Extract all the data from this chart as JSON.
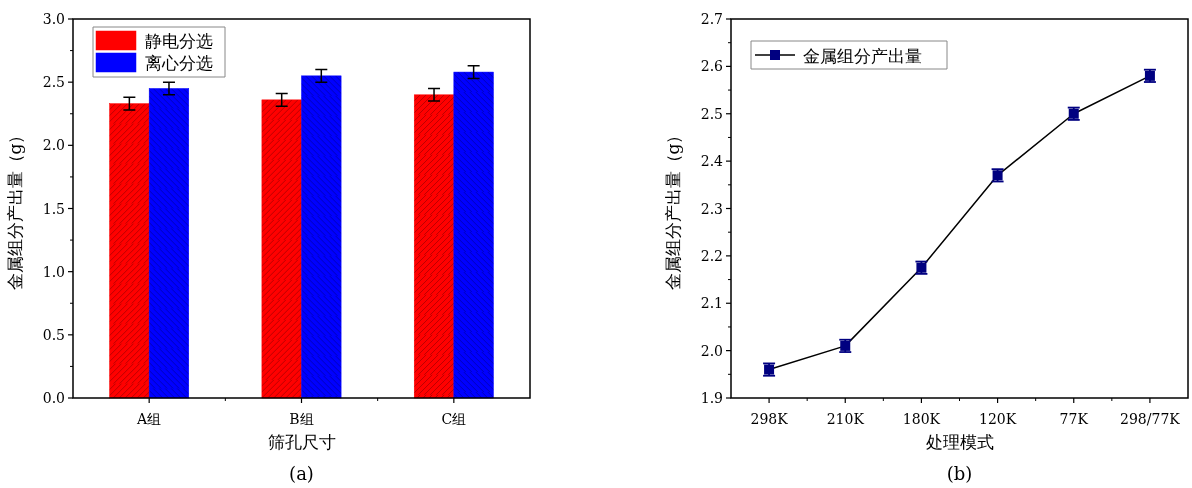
{
  "chart_data": [
    {
      "type": "bar",
      "categories": [
        "A组",
        "B组",
        "C组"
      ],
      "xlabel": "筛孔尺寸",
      "ylabel": "金属组分产出量（g）",
      "annotations": [
        "(a)"
      ],
      "series": [
        {
          "name": "静电分选",
          "color": "#ff0000",
          "values": [
            2.33,
            2.36,
            2.4
          ],
          "errors": [
            0.05,
            0.05,
            0.05
          ]
        },
        {
          "name": "离心分选",
          "color": "#0000ff",
          "values": [
            2.45,
            2.55,
            2.58
          ],
          "errors": [
            0.05,
            0.05,
            0.05
          ]
        }
      ],
      "ylim": [
        0,
        3
      ],
      "yticks": [
        {
          "value": 0,
          "label": "0.0"
        },
        0.5,
        {
          "value": 1,
          "label": "1.0"
        },
        1.5,
        {
          "value": 2,
          "label": "2.0"
        },
        2.5,
        {
          "value": 3,
          "label": "3.0"
        }
      ],
      "legend": "top left"
    },
    {
      "type": "line",
      "categories": [
        "298K",
        "210K",
        "180K",
        "120K",
        "77K",
        "298/77K"
      ],
      "xlabel": "处理模式",
      "ylabel": "金属组分产出量（g）",
      "annotations": [
        "(b)"
      ],
      "series": [
        {
          "name": "金属组分产出量",
          "color": "#000080",
          "values": [
            1.96,
            2.01,
            2.175,
            2.37,
            2.5,
            2.58
          ],
          "errors": [
            0.013,
            0.013,
            0.013,
            0.013,
            0.013,
            0.013
          ]
        }
      ],
      "ylim": [
        1.9,
        2.7
      ],
      "yticks": [
        1.9,
        {
          "value": 2,
          "label": "2.0"
        },
        2.1,
        2.2,
        2.3,
        2.4,
        2.5,
        2.6,
        2.7
      ],
      "marker": "square",
      "legend": "top left"
    }
  ]
}
